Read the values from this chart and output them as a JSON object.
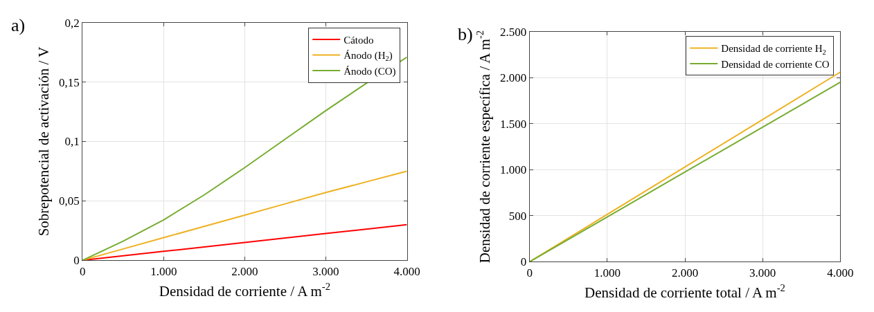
{
  "chart_data": [
    {
      "type": "line",
      "title": "a)",
      "xlabel": "Densidad de corriente / A m$^{-2}$",
      "ylabel": "Sobrepotencial de activación / V",
      "x": [
        0,
        500,
        1000,
        1500,
        2000,
        2500,
        3000,
        3500,
        4000
      ],
      "series": [
        {
          "name": "Cátodo",
          "color": "#ff0000",
          "values": [
            0,
            0.0037,
            0.0075,
            0.0112,
            0.015,
            0.0187,
            0.0225,
            0.0262,
            0.03
          ]
        },
        {
          "name": "Ánodo (H$_{2}$)",
          "color": "#edb120",
          "values": [
            0,
            0.0095,
            0.019,
            0.0285,
            0.038,
            0.0475,
            0.057,
            0.066,
            0.075
          ]
        },
        {
          "name": "Ánodo (CO)",
          "color": "#77ac30",
          "values": [
            0,
            0.016,
            0.034,
            0.055,
            0.078,
            0.102,
            0.126,
            0.149,
            0.171
          ]
        }
      ],
      "xlim": [
        0,
        4000
      ],
      "ylim": [
        0,
        0.2
      ],
      "xticks": [
        0,
        {
          "value": 1000,
          "label": "1.000"
        },
        {
          "value": 2000,
          "label": "2.000"
        },
        {
          "value": 3000,
          "label": "3.000"
        },
        {
          "value": 4000,
          "label": "4.000"
        }
      ],
      "yticks": [
        0,
        {
          "value": 0.05,
          "label": "0,05"
        },
        {
          "value": 0.1,
          "label": "0,1"
        },
        {
          "value": 0.15,
          "label": "0,15"
        },
        {
          "value": 0.2,
          "label": "0,2"
        }
      ],
      "grid": true,
      "legend": "top right",
      "line_style": "solid"
    },
    {
      "type": "line",
      "title": "b)",
      "xlabel": "Densidad de corriente total / A m$^{-2}$",
      "ylabel": "Densidad de corriente específica / A m$^{-2}$",
      "x": [
        0,
        1000,
        2000,
        3000,
        4000
      ],
      "series": [
        {
          "name": "Densidad de corriente H$_{2}$",
          "color": "#edb120",
          "values": [
            0,
            515,
            1030,
            1545,
            2060
          ]
        },
        {
          "name": "Densidad de corriente CO",
          "color": "#77ac30",
          "values": [
            0,
            487,
            975,
            1462,
            1950
          ]
        }
      ],
      "xlim": [
        0,
        4000
      ],
      "ylim": [
        0,
        2500
      ],
      "xticks": [
        0,
        {
          "value": 1000,
          "label": "1.000"
        },
        {
          "value": 2000,
          "label": "2.000"
        },
        {
          "value": 3000,
          "label": "3.000"
        },
        {
          "value": 4000,
          "label": "4.000"
        }
      ],
      "yticks": [
        0,
        500,
        {
          "value": 1000,
          "label": "1.000"
        },
        {
          "value": 1500,
          "label": "1.500"
        },
        {
          "value": 2000,
          "label": "2.000"
        },
        {
          "value": 2500,
          "label": "2.500"
        }
      ],
      "grid": true,
      "legend": "top right",
      "line_style": "solid"
    }
  ]
}
